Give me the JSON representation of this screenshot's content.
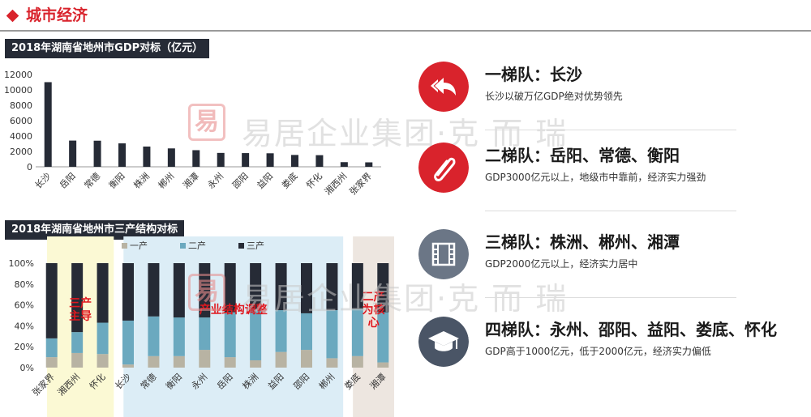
{
  "header": {
    "title": "城市经济"
  },
  "gdp_chart_title": "2018年湖南省地州市GDP对标（亿元）",
  "structure_chart_title": "2018年湖南省地州市三产结构对标",
  "watermark": {
    "brand": "易居企业集团·克 而 瑞"
  },
  "colors": {
    "accent": "#d9232c",
    "dark_bar": "#262b36",
    "primary": "#b8b3a3",
    "secondary": "#6ba9bf",
    "tertiary": "#262b36"
  },
  "chart_data": [
    {
      "type": "bar",
      "title": "2018年湖南省地州市GDP对标（亿元）",
      "categories": [
        "长沙",
        "岳阳",
        "常德",
        "衡阳",
        "株洲",
        "郴州",
        "湘潭",
        "永州",
        "邵阳",
        "益阳",
        "娄底",
        "怀化",
        "湘西州",
        "张家界"
      ],
      "values": [
        11003,
        3411,
        3395,
        3046,
        2631,
        2392,
        2162,
        1806,
        1782,
        1758,
        1541,
        1513,
        605,
        579
      ],
      "ylim": [
        0,
        12000
      ],
      "yticks": [
        0,
        2000,
        4000,
        6000,
        8000,
        10000,
        12000
      ],
      "xlabel": "",
      "ylabel": "",
      "color": "#262b36"
    },
    {
      "type": "bar",
      "stacked": true,
      "title": "2018年湖南省地州市三产结构对标",
      "categories": [
        "张家界",
        "湘西州",
        "怀化",
        "长沙",
        "常德",
        "衡阳",
        "永州",
        "岳阳",
        "株洲",
        "益阳",
        "邵阳",
        "郴州",
        "娄底",
        "湘潭"
      ],
      "series": [
        {
          "name": "一产",
          "values": [
            10,
            14,
            13,
            3,
            11,
            11,
            17,
            10,
            7,
            15,
            17,
            9,
            11,
            5
          ],
          "color": "#b8b3a3"
        },
        {
          "name": "二产",
          "values": [
            18,
            20,
            30,
            42,
            38,
            37,
            31,
            43,
            49,
            40,
            35,
            46,
            45,
            48
          ],
          "color": "#6ba9bf"
        },
        {
          "name": "三产",
          "values": [
            72,
            66,
            57,
            55,
            51,
            52,
            52,
            47,
            44,
            45,
            48,
            45,
            44,
            47
          ],
          "color": "#262b36"
        }
      ],
      "ylim": [
        0,
        100
      ],
      "yticks": [
        "0%",
        "20%",
        "40%",
        "60%",
        "80%",
        "100%"
      ],
      "groups": [
        {
          "label": "三产\n主导",
          "color": "#fbf9d4",
          "start": 0,
          "end": 2
        },
        {
          "label": "产业结构调整",
          "color": "#dcedf6",
          "start": 3,
          "end": 11
        },
        {
          "label": "二产\n为核\n心",
          "color": "#ede6e0",
          "start": 12,
          "end": 13
        }
      ],
      "legend": "top"
    }
  ],
  "tiers": [
    {
      "heading": "一梯队：长沙",
      "desc": "长沙以破万亿GDP绝对优势领先",
      "icon": "reply-arrow-icon",
      "icon_color": "#d9232c"
    },
    {
      "heading": "二梯队：岳阳、常德、衡阳",
      "desc": "GDP3000亿元以上，地级市中靠前，经济实力强劲",
      "icon": "paperclip-icon",
      "icon_color": "#d9232c"
    },
    {
      "heading": "三梯队：株洲、郴州、湘潭",
      "desc": "GDP2000亿元以上，经济实力居中",
      "icon": "film-icon",
      "icon_color": "#6b7686"
    },
    {
      "heading": "四梯队：永州、邵阳、益阳、娄底、怀化",
      "desc": "GDP高于1000亿元，低于2000亿元，经济实力偏低",
      "icon": "graduation-cap-icon",
      "icon_color": "#4a5566"
    }
  ]
}
